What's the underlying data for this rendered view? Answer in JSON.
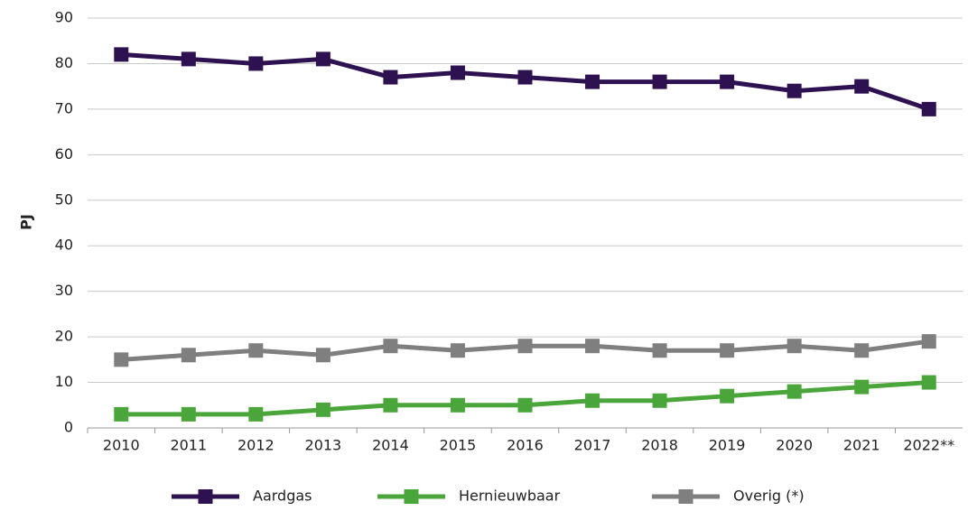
{
  "chart_data": {
    "type": "line",
    "y_label": "PJ",
    "categories": [
      "2010",
      "2011",
      "2012",
      "2013",
      "2014",
      "2015",
      "2016",
      "2017",
      "2018",
      "2019",
      "2020",
      "2021",
      "2022**"
    ],
    "series": [
      {
        "name": "Aardgas",
        "color": "#2d1151",
        "values": [
          82,
          81,
          80,
          81,
          77,
          78,
          77,
          76,
          76,
          76,
          74,
          75,
          70
        ]
      },
      {
        "name": "Hernieuwbaar",
        "color": "#4aa63a",
        "values": [
          3,
          3,
          3,
          4,
          5,
          5,
          5,
          6,
          6,
          7,
          8,
          9,
          10
        ]
      },
      {
        "name": "Overig (*)",
        "color": "#7f7f7f",
        "values": [
          15,
          16,
          17,
          16,
          18,
          17,
          18,
          18,
          17,
          17,
          18,
          17,
          19
        ]
      }
    ],
    "ylim": [
      0,
      90
    ],
    "yticks": [
      0,
      10,
      20,
      30,
      40,
      50,
      60,
      70,
      80,
      90
    ],
    "grid": true,
    "legend": "bottom"
  }
}
